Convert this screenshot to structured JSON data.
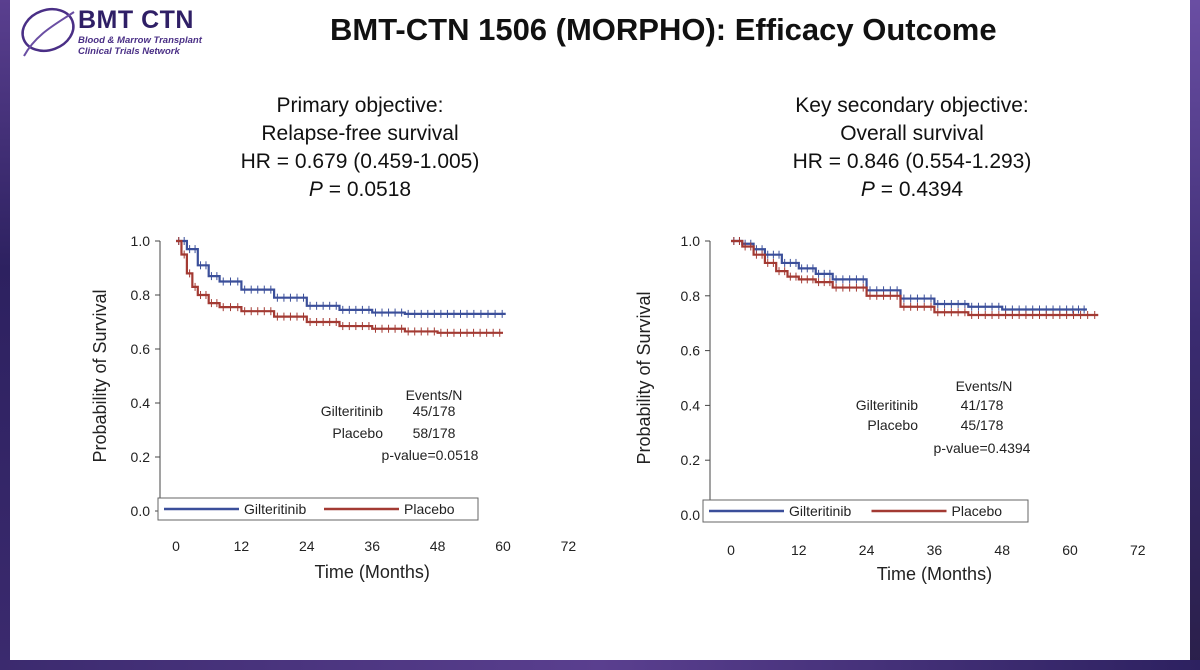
{
  "header": {
    "logo_main": "BMT CTN",
    "logo_sub1": "Blood & Marrow Transplant",
    "logo_sub2": "Clinical Trials Network",
    "title": "BMT-CTN 1506 (MORPHO): Efficacy Outcome"
  },
  "panels": [
    {
      "heading": [
        "Primary objective:",
        "Relapse-free survival",
        "HR = 0.679 (0.459-1.005)"
      ],
      "p_label": "P",
      "p_text": " = 0.0518",
      "table": {
        "header": "Events/N",
        "rows": [
          {
            "arm": "Gilteritinib",
            "value": "45/178"
          },
          {
            "arm": "Placebo",
            "value": "58/178"
          }
        ],
        "pvalue": "p-value=0.0518"
      }
    },
    {
      "heading": [
        "Key secondary objective:",
        "Overall survival",
        "HR = 0.846 (0.554-1.293)"
      ],
      "p_label": "P",
      "p_text": " = 0.4394",
      "table": {
        "header": "Events/N",
        "rows": [
          {
            "arm": "Gilteritinib",
            "value": "41/178"
          },
          {
            "arm": "Placebo",
            "value": "45/178"
          }
        ],
        "pvalue": "p-value=0.4394"
      }
    }
  ],
  "chart_data": [
    {
      "type": "line",
      "title": "Relapse-free survival",
      "xlabel": "Time (Months)",
      "ylabel": "Probability of Survival",
      "xlim": [
        0,
        72
      ],
      "ylim": [
        0,
        1
      ],
      "xticks": [
        0,
        12,
        24,
        36,
        48,
        60,
        72
      ],
      "yticks": [
        "0.0",
        "0.2",
        "0.4",
        "0.6",
        "0.8",
        "1.0"
      ],
      "legend_position": "bottom",
      "series": [
        {
          "name": "Gilteritinib",
          "color": "#3b4f9a",
          "x": [
            0,
            2,
            4,
            6,
            8,
            12,
            18,
            24,
            30,
            36,
            42,
            48,
            54,
            60.5
          ],
          "y": [
            1.0,
            0.97,
            0.91,
            0.87,
            0.85,
            0.82,
            0.79,
            0.76,
            0.745,
            0.735,
            0.73,
            0.73,
            0.73,
            0.73
          ]
        },
        {
          "name": "Placebo",
          "color": "#a33a33",
          "x": [
            0,
            1,
            2,
            3,
            4,
            6,
            8,
            12,
            18,
            24,
            30,
            36,
            42,
            48,
            54,
            60
          ],
          "y": [
            1.0,
            0.95,
            0.88,
            0.83,
            0.8,
            0.77,
            0.755,
            0.74,
            0.72,
            0.7,
            0.685,
            0.675,
            0.665,
            0.66,
            0.66,
            0.66
          ]
        }
      ]
    },
    {
      "type": "line",
      "title": "Overall survival",
      "xlabel": "Time (Months)",
      "ylabel": "Probability of Survival",
      "xlim": [
        0,
        72
      ],
      "ylim": [
        0,
        1
      ],
      "xticks": [
        0,
        12,
        24,
        36,
        48,
        60,
        72
      ],
      "yticks": [
        "0.0",
        "0.2",
        "0.4",
        "0.6",
        "0.8",
        "1.0"
      ],
      "legend_position": "bottom",
      "series": [
        {
          "name": "Gilteritinib",
          "color": "#3b4f9a",
          "x": [
            0,
            2,
            4,
            6,
            9,
            12,
            15,
            18,
            24,
            30,
            36,
            42,
            48,
            54,
            60,
            63
          ],
          "y": [
            1.0,
            0.99,
            0.97,
            0.95,
            0.92,
            0.9,
            0.88,
            0.86,
            0.82,
            0.79,
            0.77,
            0.76,
            0.75,
            0.75,
            0.75,
            0.75
          ]
        },
        {
          "name": "Placebo",
          "color": "#a33a33",
          "x": [
            0,
            2,
            4,
            6,
            8,
            10,
            12,
            15,
            18,
            24,
            30,
            36,
            42,
            48,
            54,
            60,
            65
          ],
          "y": [
            1.0,
            0.98,
            0.95,
            0.92,
            0.89,
            0.87,
            0.86,
            0.85,
            0.83,
            0.8,
            0.76,
            0.74,
            0.73,
            0.73,
            0.73,
            0.73,
            0.73
          ]
        }
      ]
    }
  ]
}
